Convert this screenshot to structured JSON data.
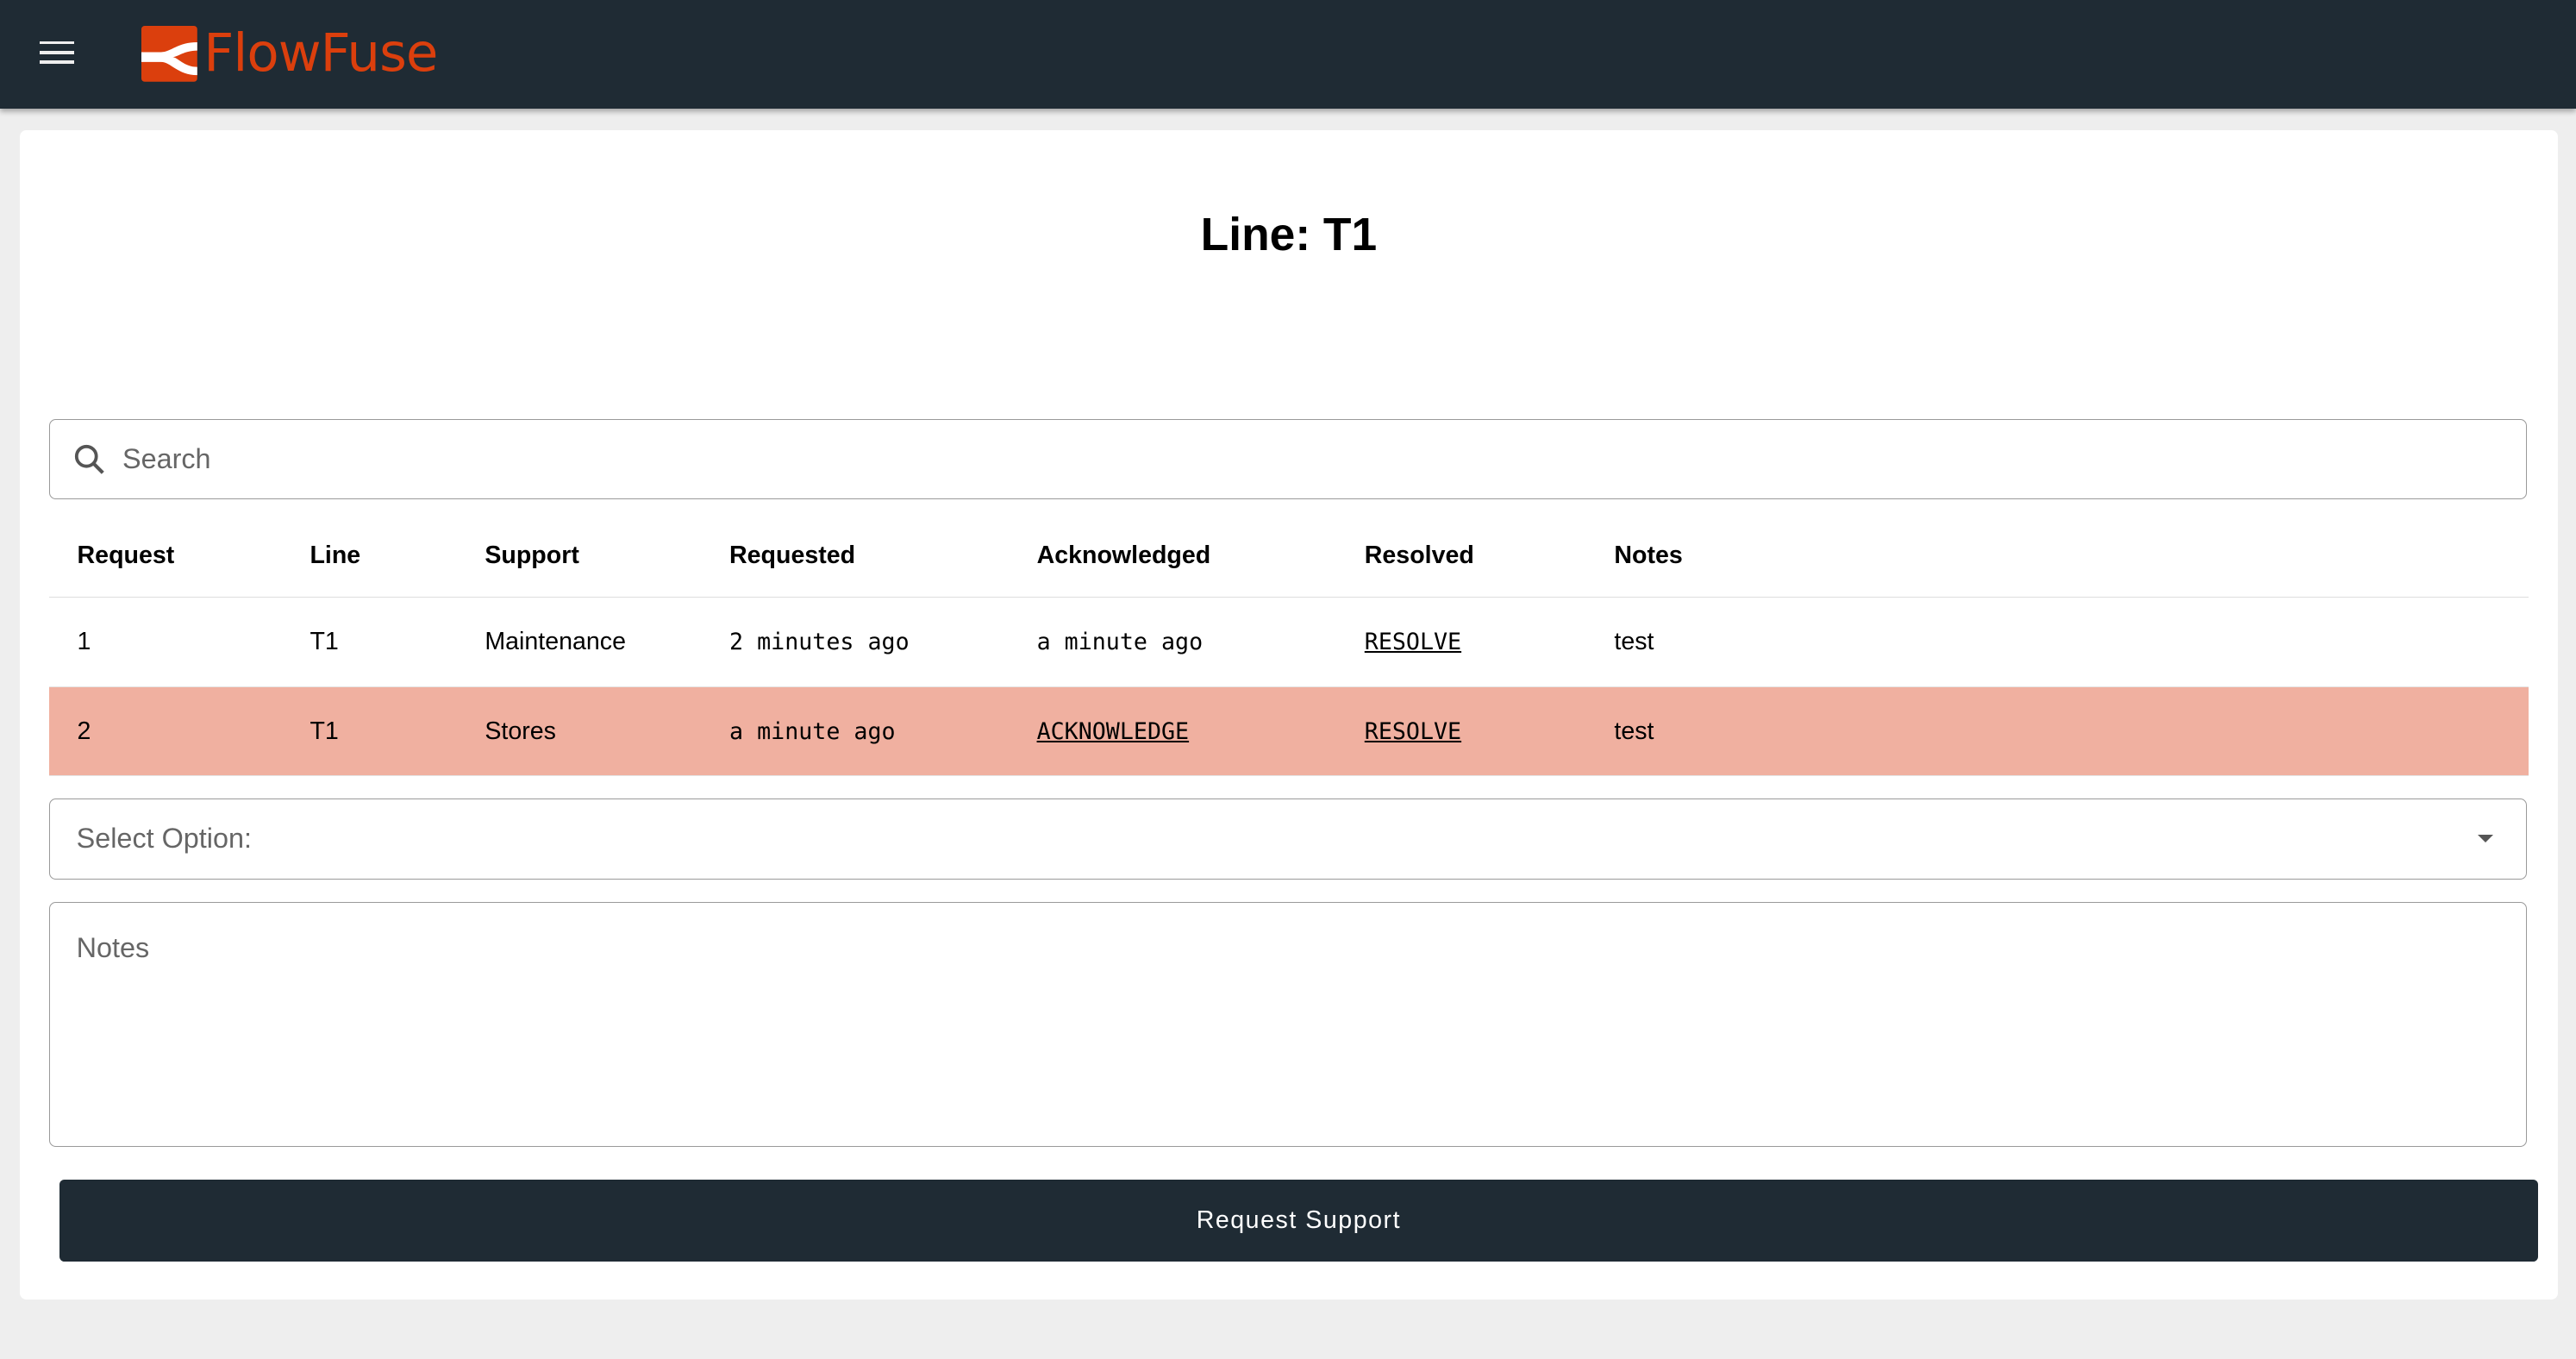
{
  "header": {
    "brand": "FlowFuse",
    "menu_icon": "hamburger-icon",
    "brand_color": "#db3f0d",
    "bg_color": "#1f2b34"
  },
  "page": {
    "title": "Line: T1"
  },
  "search": {
    "placeholder": "Search",
    "icon": "search-icon"
  },
  "table": {
    "columns": [
      "Request",
      "Line",
      "Support",
      "Requested",
      "Acknowledged",
      "Resolved",
      "Notes"
    ],
    "rows": [
      {
        "request": "1",
        "line": "T1",
        "support": "Maintenance",
        "requested": "2 minutes ago",
        "acknowledged": "a minute ago",
        "resolved": "RESOLVE",
        "notes": "test",
        "highlight": false
      },
      {
        "request": "2",
        "line": "T1",
        "support": "Stores",
        "requested": "a minute ago",
        "acknowledged": "ACKNOWLEDGE",
        "resolved": "RESOLVE",
        "notes": "test",
        "highlight": true,
        "highlight_color": "#f0b0a0"
      }
    ]
  },
  "form": {
    "select_placeholder": "Select Option:",
    "notes_placeholder": "Notes",
    "submit_label": "Request Support"
  }
}
